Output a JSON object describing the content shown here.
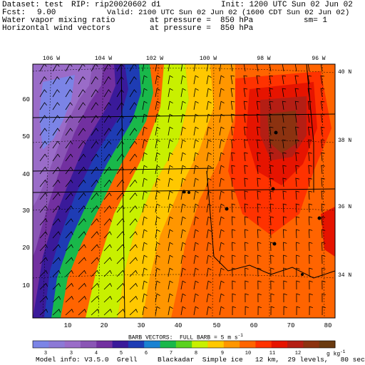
{
  "header": {
    "dataset": "Dataset: test",
    "rip": "RIP: rip20020602 d1",
    "init": "Init: 1200 UTC Sun 02 Jun 02",
    "fcst_label": "Fcst:",
    "fcst_value": "9.00",
    "valid": "Valid: 2100 UTC Sun 02 Jun 02 (1600 CDT Sun 02 Jun 02)",
    "field1": "Water vapor mixing ratio",
    "field1_level": "at pressure =  850 hPa",
    "field1_sm": "sm= 1",
    "field2": "Horizontal wind vectors",
    "field2_level": "at pressure =  850 hPa"
  },
  "map": {
    "lon_labels": [
      "106 W",
      "104 W",
      "102 W",
      "100 W",
      "98 W",
      "96 W"
    ],
    "lat_labels": [
      "40 N",
      "38 N",
      "36 N",
      "34 N"
    ],
    "grid_x_ticks": [
      "10",
      "20",
      "30",
      "40",
      "50",
      "60",
      "70",
      "80"
    ],
    "grid_y_ticks": [
      "10",
      "20",
      "30",
      "40",
      "50",
      "60"
    ]
  },
  "barb_note": "BARB VECTORS:  FULL BARB = 5 m s",
  "colorbar": {
    "colors": [
      "#7b84e6",
      "#8c79d6",
      "#9a6cc8",
      "#8a55b5",
      "#7230a0",
      "#3a1a9a",
      "#1e3cb4",
      "#1a82d2",
      "#19b84a",
      "#5ad21e",
      "#c8f000",
      "#ffc800",
      "#ff9600",
      "#ff6400",
      "#ff3200",
      "#e61400",
      "#b41e14",
      "#8c3210",
      "#6a3a10"
    ],
    "labels": [
      "3",
      "3",
      "4",
      "5",
      "6",
      "7",
      "8",
      "9",
      "10",
      "11",
      "12"
    ],
    "unit": "g kg"
  },
  "footer": "Model info: V3.5.0  Grell     Blackadar  Simple ice   12 km,  29 levels,   80 sec"
}
